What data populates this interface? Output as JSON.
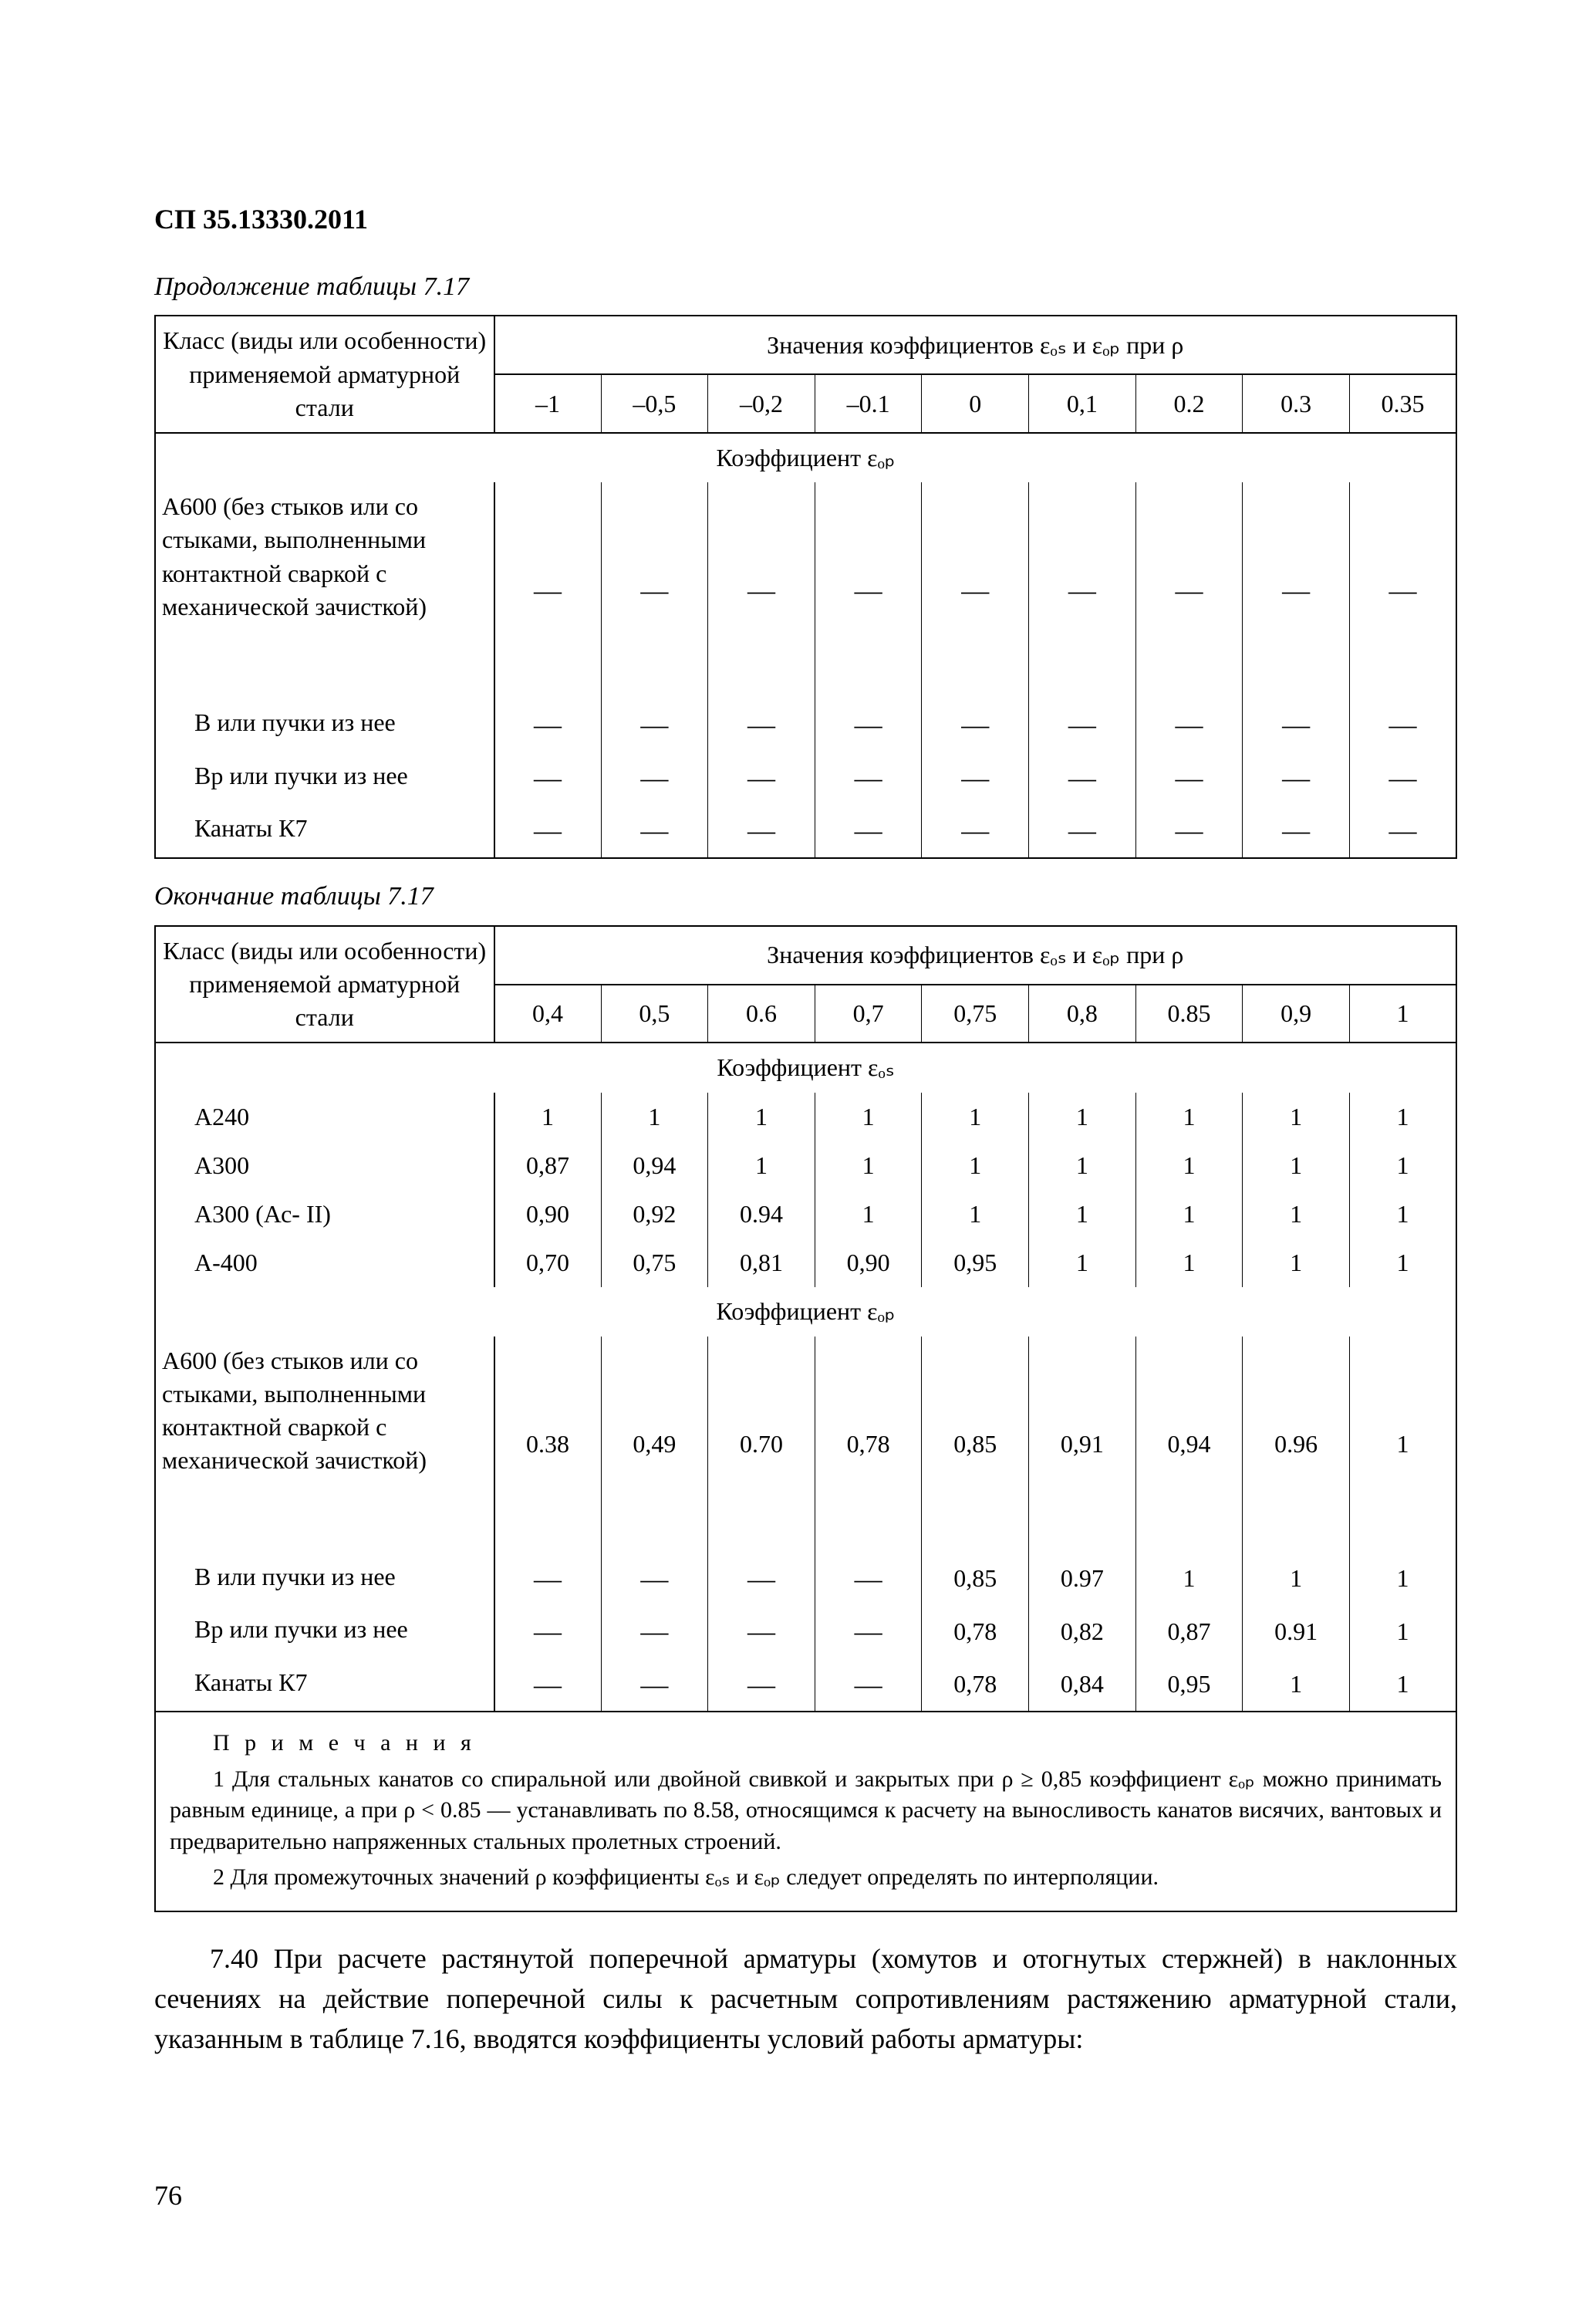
{
  "doc_code": "СП 35.13330.2011",
  "caption1": "Продолжение таблицы 7.17",
  "caption2": "Окончание таблицы 7.17",
  "header_left_l1": "Класс (виды или особенности)",
  "header_left_l2": "применяемой арматурной стали",
  "header_right_t1": "Значения коэффициентов  εₒₛ и  εₒₚ  при ρ",
  "rho1": [
    "–1",
    "–0,5",
    "–0,2",
    "–0.1",
    "0",
    "0,1",
    "0.2",
    "0.3",
    "0.35"
  ],
  "rho2": [
    "0,4",
    "0,5",
    "0.6",
    "0,7",
    "0,75",
    "0,8",
    "0.85",
    "0,9",
    "1"
  ],
  "coef_eps_pp_title": "Коэффициент εₒₚ",
  "coef_eps_ps_title": "Коэффициент εₒₛ",
  "t1_rows": [
    {
      "label": "А600 (без стыков или со стыками, выполненными контактной сваркой с механической зачисткой)",
      "indent": false,
      "v": [
        "—",
        "—",
        "—",
        "—",
        "—",
        "—",
        "—",
        "—",
        "—"
      ],
      "tall": true
    },
    {
      "label": "В или пучки из нее",
      "indent": true,
      "v": [
        "—",
        "—",
        "—",
        "—",
        "—",
        "—",
        "—",
        "—",
        "—"
      ]
    },
    {
      "label": "Вр или пучки из нее",
      "indent": true,
      "v": [
        "—",
        "—",
        "—",
        "—",
        "—",
        "—",
        "—",
        "—",
        "—"
      ]
    },
    {
      "label": "Канаты К7",
      "indent": true,
      "v": [
        "—",
        "—",
        "—",
        "—",
        "—",
        "—",
        "—",
        "—",
        "—"
      ]
    }
  ],
  "t2a_rows": [
    {
      "label": "А240",
      "indent": true,
      "v": [
        "1",
        "1",
        "1",
        "1",
        "1",
        "1",
        "1",
        "1",
        "1"
      ]
    },
    {
      "label": "А300",
      "indent": true,
      "v": [
        "0,87",
        "0,94",
        "1",
        "1",
        "1",
        "1",
        "1",
        "1",
        "1"
      ]
    },
    {
      "label": "А300 (Ас- II)",
      "indent": true,
      "v": [
        "0,90",
        "0,92",
        "0.94",
        "1",
        "1",
        "1",
        "1",
        "1",
        "1"
      ]
    },
    {
      "label": "А-400",
      "indent": true,
      "v": [
        "0,70",
        "0,75",
        "0,81",
        "0,90",
        "0,95",
        "1",
        "1",
        "1",
        "1"
      ]
    }
  ],
  "t2b_rows": [
    {
      "label": "А600 (без стыков или со стыками, выполненными контактной сваркой с механической зачисткой)",
      "indent": false,
      "v": [
        "0.38",
        "0,49",
        "0.70",
        "0,78",
        "0,85",
        "0,91",
        "0,94",
        "0.96",
        "1"
      ],
      "tall": true
    },
    {
      "label": "В или пучки из нее",
      "indent": true,
      "v": [
        "—",
        "—",
        "—",
        "—",
        "0,85",
        "0.97",
        "1",
        "1",
        "1"
      ]
    },
    {
      "label": "Вр или пучки из нее",
      "indent": true,
      "v": [
        "—",
        "—",
        "—",
        "—",
        "0,78",
        "0,82",
        "0,87",
        "0.91",
        "1"
      ]
    },
    {
      "label": "Канаты К7",
      "indent": true,
      "v": [
        "—",
        "—",
        "—",
        "—",
        "0,78",
        "0,84",
        "0,95",
        "1",
        "1"
      ]
    }
  ],
  "notes_title": "П р и м е ч а н и я",
  "notes_p1": "1 Для стальных канатов со спиральной или двойной свивкой и закрытых при ρ ≥ 0,85 коэффициент εₒₚ можно принимать равным единице, а при ρ < 0.85 — устанавливать по 8.58, относящимся к расчету на выносливость канатов висячих, вантовых и предварительно напряженных стальных пролетных строений.",
  "notes_p2": "2 Для промежуточных значений ρ коэффициенты εₒₛ и  εₒₚ  следует определять по      интерполяции.",
  "paragraph": "7.40 При расчете растянутой поперечной арматуры (хомутов и отогнутых стержней) в наклонных сечениях на действие поперечной силы к расчетным сопротивлениям растяжению арматурной стали, указанным в таблице 7.16, вводятся коэффициенты условий работы арматуры:",
  "page_number": "76",
  "colors": {
    "text": "#000000",
    "bg": "#ffffff",
    "border": "#000000"
  }
}
